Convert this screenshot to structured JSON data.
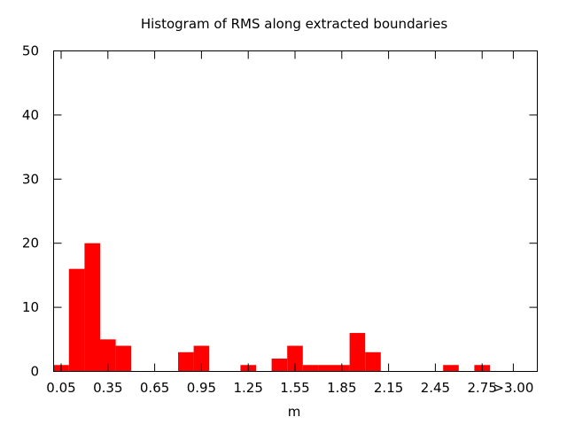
{
  "chart_data": {
    "type": "bar",
    "title": "Histogram of RMS along extracted boundaries",
    "xlabel": "m",
    "ylabel": "",
    "bar_color": "#ff0000",
    "ylim": [
      0,
      50
    ],
    "y_ticks": [
      "0",
      "10",
      "20",
      "30",
      "40",
      "50"
    ],
    "x_ticks": [
      "0.05",
      "0.35",
      "0.65",
      "0.95",
      "1.25",
      "1.55",
      "1.85",
      "2.15",
      "2.45",
      "2.75",
      ">3.00"
    ],
    "categories": [
      "0.05",
      "0.15",
      "0.25",
      "0.35",
      "0.45",
      "0.55",
      "0.65",
      "0.75",
      "0.85",
      "0.95",
      "1.05",
      "1.15",
      "1.25",
      "1.35",
      "1.45",
      "1.55",
      "1.65",
      "1.75",
      "1.85",
      "1.95",
      "2.05",
      "2.15",
      "2.25",
      "2.35",
      "2.45",
      "2.55",
      "2.65",
      "2.75",
      "2.85",
      ">3.00"
    ],
    "values": [
      1,
      16,
      20,
      5,
      4,
      0,
      0,
      0,
      3,
      4,
      0,
      0,
      1,
      0,
      2,
      4,
      1,
      1,
      1,
      6,
      3,
      0,
      0,
      0,
      0,
      1,
      0,
      1,
      0,
      0
    ],
    "grid": false,
    "legend": false
  }
}
